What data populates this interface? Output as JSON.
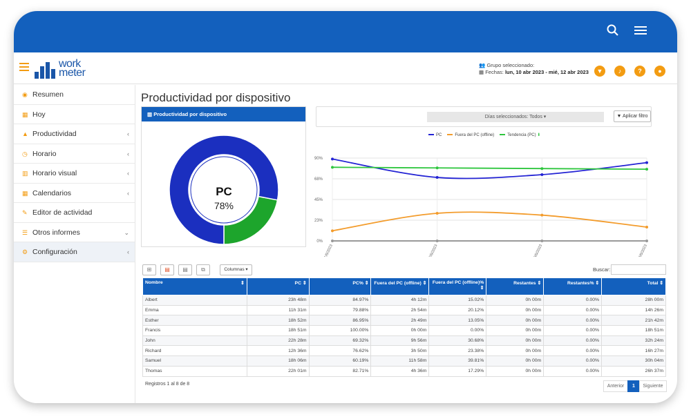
{
  "header": {
    "logo_line1": "work",
    "logo_line2": "meter",
    "grupo_label": "Grupo seleccionado:",
    "fechas_label": "Fechas:",
    "fechas_value": "lun, 10 abr 2023 - mié, 12 abr 2023"
  },
  "sidebar": {
    "items": [
      {
        "label": "Resumen",
        "icon": "dashboard-icon",
        "glyph": "◉",
        "chevron": ""
      },
      {
        "label": "Hoy",
        "icon": "calendar-icon",
        "glyph": "▦",
        "chevron": ""
      },
      {
        "label": "Productividad",
        "icon": "area-chart-icon",
        "glyph": "▲",
        "chevron": "‹"
      },
      {
        "label": "Horario",
        "icon": "clock-icon",
        "glyph": "◷",
        "chevron": "‹"
      },
      {
        "label": "Horario visual",
        "icon": "bar-chart-icon",
        "glyph": "▥",
        "chevron": "‹"
      },
      {
        "label": "Calendarios",
        "icon": "calendar-icon",
        "glyph": "▦",
        "chevron": "‹"
      },
      {
        "label": "Editor de actividad",
        "icon": "edit-icon",
        "glyph": "✎",
        "chevron": ""
      },
      {
        "label": "Otros informes",
        "icon": "list-icon",
        "glyph": "☰",
        "chevron": "⌄"
      },
      {
        "label": "Configuración",
        "icon": "gear-icon",
        "glyph": "⚙",
        "chevron": "‹"
      }
    ]
  },
  "page": {
    "title": "Productividad por dispositivo",
    "card_title": "Productividad por dispositivo"
  },
  "donut": {
    "label": "PC",
    "value_text": "78%",
    "value": 78,
    "colors": {
      "pc": "#1b2fbf",
      "offline": "#1da52c"
    }
  },
  "filter": {
    "dias_label": "Días seleccionados: Todos",
    "apply_label": "Aplicar filtro"
  },
  "chart_data": {
    "type": "line",
    "x": [
      "1/6/2023",
      "2/6/2023",
      "3/6/2023",
      "4/6/2023"
    ],
    "ylim": [
      0,
      90
    ],
    "yticks": [
      "0%",
      "23%",
      "45%",
      "68%",
      "90%"
    ],
    "ytick_values": [
      0,
      22.5,
      45,
      67.5,
      90
    ],
    "series": [
      {
        "name": "PC",
        "color": "#2323d4",
        "values": [
          89,
          69,
          72,
          85
        ]
      },
      {
        "name": "Fuera del PC (offline)",
        "color": "#f39c2c",
        "values": [
          11,
          30,
          28,
          15
        ]
      },
      {
        "name": "Tendencia (PC)",
        "color": "#2ec63e",
        "values": [
          80,
          79.3,
          78.6,
          77.9
        ]
      }
    ],
    "zero_line_color": "#999999"
  },
  "table": {
    "columns_btn": "Columnas",
    "search_label": "Buscar:",
    "headers": [
      "Nombre",
      "PC",
      "PC%",
      "Fuera del PC (offline)",
      "Fuera del PC (offline)%",
      "Restantes",
      "Restantes%",
      "Total"
    ],
    "rows": [
      [
        "Albert",
        "23h 48m",
        "84.97%",
        "4h 12m",
        "15.02%",
        "0h 00m",
        "0.00%",
        "28h 00m"
      ],
      [
        "Emma",
        "11h 31m",
        "79.88%",
        "2h 54m",
        "20.12%",
        "0h 00m",
        "0.00%",
        "14h 26m"
      ],
      [
        "Esther",
        "18h 52m",
        "86.95%",
        "2h 49m",
        "13.05%",
        "0h 00m",
        "0.00%",
        "21h 42m"
      ],
      [
        "Francis",
        "18h 51m",
        "100.00%",
        "0h 00m",
        "0.00%",
        "0h 00m",
        "0.00%",
        "18h 51m"
      ],
      [
        "John",
        "22h 28m",
        "69.32%",
        "9h 56m",
        "30.68%",
        "0h 00m",
        "0.00%",
        "32h 24m"
      ],
      [
        "Richard",
        "12h 36m",
        "76.62%",
        "3h 50m",
        "23.38%",
        "0h 00m",
        "0.00%",
        "16h 27m"
      ],
      [
        "Samuel",
        "18h 06m",
        "60.19%",
        "11h 58m",
        "39.81%",
        "0h 00m",
        "0.00%",
        "30h 04m"
      ],
      [
        "Thomas",
        "22h 01m",
        "82.71%",
        "4h 36m",
        "17.29%",
        "0h 00m",
        "0.00%",
        "26h 37m"
      ]
    ],
    "footer": "Registros 1 al 8 de 8",
    "prev": "Anterior",
    "page": "1",
    "next": "Siguiente"
  }
}
